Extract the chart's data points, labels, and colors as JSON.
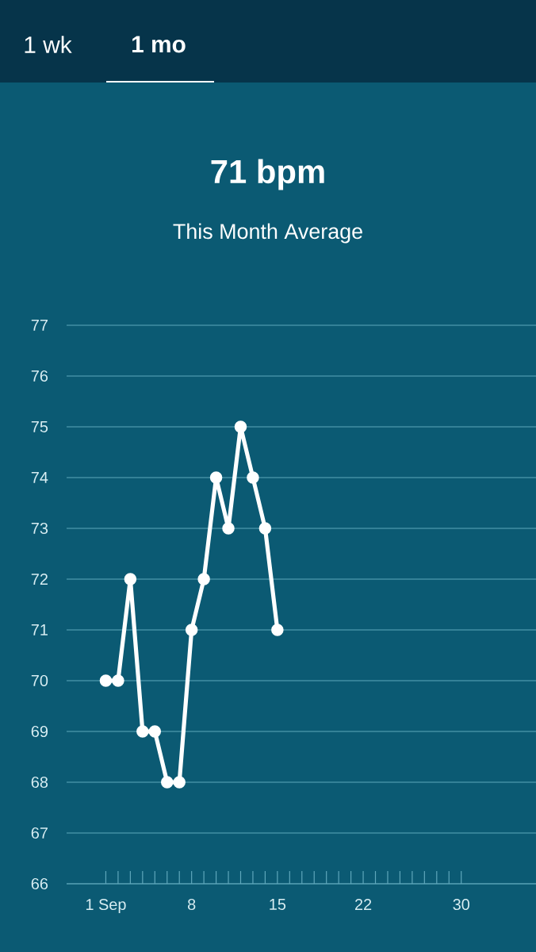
{
  "chart_data": {
    "type": "line",
    "title": "71 bpm",
    "subtitle": "This Month Average",
    "annotations": [
      "1 wk",
      "1 mo"
    ],
    "x": [
      1,
      2,
      3,
      4,
      5,
      6,
      7,
      8,
      9,
      10,
      11,
      12,
      13,
      14,
      15
    ],
    "series": [
      {
        "color": "#ffffff",
        "values": [
          70,
          70,
          72,
          69,
          69,
          68,
          68,
          71,
          72,
          74,
          73,
          75,
          74,
          73,
          71
        ]
      }
    ],
    "xlim": [
      -2.2,
      36.1
    ],
    "ylim": [
      66,
      77
    ],
    "xticks": [
      {
        "value": 1,
        "label": "1 Sep"
      },
      {
        "value": 2,
        "label": null
      },
      {
        "value": 3,
        "label": null
      },
      {
        "value": 4,
        "label": null
      },
      {
        "value": 5,
        "label": null
      },
      {
        "value": 6,
        "label": null
      },
      {
        "value": 7,
        "label": null
      },
      8,
      {
        "value": 9,
        "label": null
      },
      {
        "value": 10,
        "label": null
      },
      {
        "value": 11,
        "label": null
      },
      {
        "value": 12,
        "label": null
      },
      {
        "value": 13,
        "label": null
      },
      {
        "value": 14,
        "label": null
      },
      15,
      {
        "value": 16,
        "label": null
      },
      {
        "value": 17,
        "label": null
      },
      {
        "value": 18,
        "label": null
      },
      {
        "value": 19,
        "label": null
      },
      {
        "value": 20,
        "label": null
      },
      {
        "value": 21,
        "label": null
      },
      22,
      {
        "value": 23,
        "label": null
      },
      {
        "value": 24,
        "label": null
      },
      {
        "value": 25,
        "label": null
      },
      {
        "value": 26,
        "label": null
      },
      {
        "value": 27,
        "label": null
      },
      {
        "value": 28,
        "label": null
      },
      {
        "value": 29,
        "label": null
      },
      30
    ],
    "yticks": [
      66,
      67,
      68,
      69,
      70,
      71,
      72,
      73,
      74,
      75,
      76,
      77
    ],
    "grid": "y",
    "marker": "circle",
    "line_style": "solid"
  }
}
